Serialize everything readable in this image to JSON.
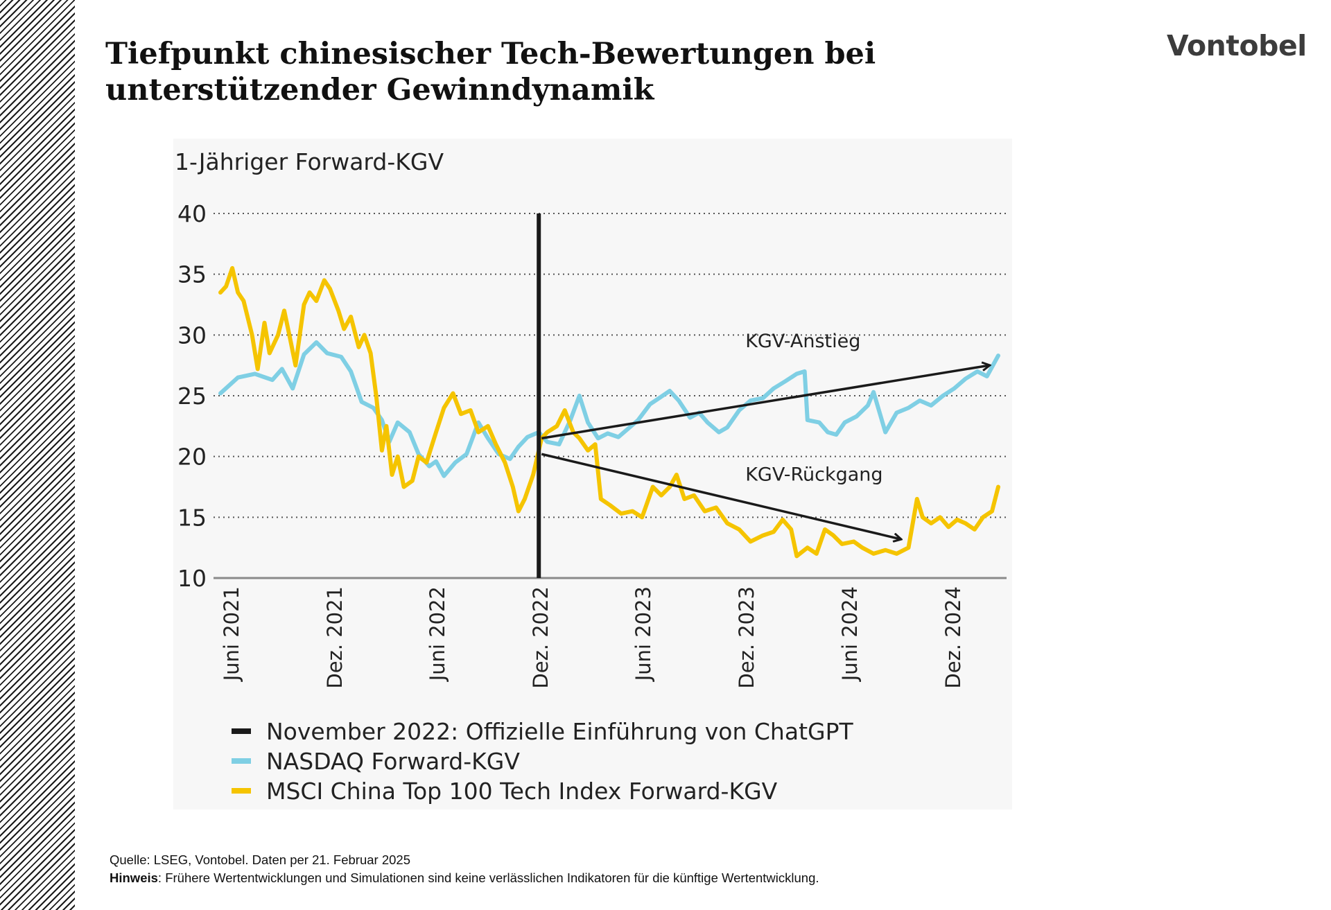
{
  "slide": {
    "title": "Tiefpunkt chinesischer Tech-Bewertungen bei unterstützender Gewinndynamik",
    "logo_text": "Vontobel"
  },
  "footer": {
    "source": "Quelle: LSEG, Vontobel. Daten per 21. Februar 2025",
    "note_label": "Hinweis",
    "note_text": ": Frühere Wertentwicklungen und Simulationen sind keine verlässlichen Indikatoren für die künftige Wertentwicklung."
  },
  "colors": {
    "nasdaq": "#7fcfe4",
    "china": "#f5c400",
    "event": "#1a1a1a",
    "arrow": "#1a1a1a",
    "grid": "#555555"
  },
  "chart_data": {
    "type": "line",
    "ylabel": "1-Jähriger Forward-KGV",
    "ylim": [
      10,
      40
    ],
    "yticks": [
      10,
      15,
      20,
      25,
      30,
      35,
      40
    ],
    "xlim": [
      "2021-05-15",
      "2025-02-21"
    ],
    "xticks": [
      {
        "date": "2021-06-01",
        "label": "Juni 2021"
      },
      {
        "date": "2021-12-01",
        "label": "Dez. 2021"
      },
      {
        "date": "2022-06-01",
        "label": "Juni 2022"
      },
      {
        "date": "2022-12-01",
        "label": "Dez. 2022"
      },
      {
        "date": "2023-06-01",
        "label": "Juni 2023"
      },
      {
        "date": "2023-12-01",
        "label": "Dez. 2023"
      },
      {
        "date": "2024-06-01",
        "label": "Juni 2024"
      },
      {
        "date": "2024-12-01",
        "label": "Dez. 2024"
      }
    ],
    "grid": "horizontal-dotted",
    "event": {
      "date": "2022-11-30",
      "label": "November 2022:  Offizielle Einführung von ChatGPT"
    },
    "series": [
      {
        "name": "NASDAQ Forward-KGV",
        "color_key": "nasdaq",
        "points": [
          [
            "2021-05-15",
            25.2
          ],
          [
            "2021-06-15",
            26.5
          ],
          [
            "2021-07-15",
            26.8
          ],
          [
            "2021-08-15",
            26.3
          ],
          [
            "2021-09-01",
            27.2
          ],
          [
            "2021-09-20",
            25.6
          ],
          [
            "2021-10-10",
            28.4
          ],
          [
            "2021-11-01",
            29.4
          ],
          [
            "2021-11-20",
            28.5
          ],
          [
            "2021-12-15",
            28.2
          ],
          [
            "2022-01-01",
            27.0
          ],
          [
            "2022-01-20",
            24.5
          ],
          [
            "2022-02-10",
            24.0
          ],
          [
            "2022-02-25",
            23.0
          ],
          [
            "2022-03-10",
            21.2
          ],
          [
            "2022-03-25",
            22.8
          ],
          [
            "2022-04-15",
            22.0
          ],
          [
            "2022-05-01",
            20.2
          ],
          [
            "2022-05-20",
            19.2
          ],
          [
            "2022-06-01",
            19.6
          ],
          [
            "2022-06-15",
            18.4
          ],
          [
            "2022-07-05",
            19.5
          ],
          [
            "2022-07-25",
            20.2
          ],
          [
            "2022-08-15",
            22.8
          ],
          [
            "2022-09-01",
            21.5
          ],
          [
            "2022-09-20",
            20.2
          ],
          [
            "2022-10-10",
            19.8
          ],
          [
            "2022-10-25",
            20.8
          ],
          [
            "2022-11-10",
            21.6
          ],
          [
            "2022-11-30",
            22.0
          ],
          [
            "2022-12-15",
            21.2
          ],
          [
            "2023-01-05",
            21.0
          ],
          [
            "2023-01-25",
            23.0
          ],
          [
            "2023-02-10",
            25.0
          ],
          [
            "2023-02-25",
            22.8
          ],
          [
            "2023-03-15",
            21.5
          ],
          [
            "2023-04-01",
            21.9
          ],
          [
            "2023-04-20",
            21.6
          ],
          [
            "2023-05-10",
            22.4
          ],
          [
            "2023-05-25",
            23.0
          ],
          [
            "2023-06-15",
            24.3
          ],
          [
            "2023-07-01",
            24.8
          ],
          [
            "2023-07-20",
            25.4
          ],
          [
            "2023-08-05",
            24.6
          ],
          [
            "2023-08-25",
            23.2
          ],
          [
            "2023-09-10",
            23.6
          ],
          [
            "2023-09-25",
            22.8
          ],
          [
            "2023-10-15",
            22.0
          ],
          [
            "2023-10-30",
            22.4
          ],
          [
            "2023-11-20",
            23.8
          ],
          [
            "2023-12-10",
            24.6
          ],
          [
            "2024-01-01",
            24.8
          ],
          [
            "2024-01-20",
            25.6
          ],
          [
            "2024-02-10",
            26.2
          ],
          [
            "2024-03-01",
            26.8
          ],
          [
            "2024-03-15",
            27.0
          ],
          [
            "2024-03-20",
            23.0
          ],
          [
            "2024-04-10",
            22.8
          ],
          [
            "2024-04-25",
            22.0
          ],
          [
            "2024-05-10",
            21.8
          ],
          [
            "2024-05-25",
            22.8
          ],
          [
            "2024-06-15",
            23.3
          ],
          [
            "2024-07-05",
            24.2
          ],
          [
            "2024-07-15",
            25.3
          ],
          [
            "2024-08-05",
            22.0
          ],
          [
            "2024-08-25",
            23.6
          ],
          [
            "2024-09-15",
            24.0
          ],
          [
            "2024-10-05",
            24.6
          ],
          [
            "2024-10-25",
            24.2
          ],
          [
            "2024-11-15",
            25.0
          ],
          [
            "2024-12-05",
            25.6
          ],
          [
            "2024-12-25",
            26.4
          ],
          [
            "2025-01-15",
            27.0
          ],
          [
            "2025-02-01",
            26.6
          ],
          [
            "2025-02-21",
            28.3
          ]
        ]
      },
      {
        "name": "MSCI China Top 100 Tech Index Forward-KGV",
        "color_key": "china",
        "points": [
          [
            "2021-05-15",
            33.5
          ],
          [
            "2021-05-25",
            34.0
          ],
          [
            "2021-06-05",
            35.5
          ],
          [
            "2021-06-15",
            33.5
          ],
          [
            "2021-06-25",
            32.8
          ],
          [
            "2021-07-10",
            30.0
          ],
          [
            "2021-07-20",
            27.2
          ],
          [
            "2021-08-01",
            31.0
          ],
          [
            "2021-08-10",
            28.5
          ],
          [
            "2021-08-25",
            30.0
          ],
          [
            "2021-09-05",
            32.0
          ],
          [
            "2021-09-15",
            29.8
          ],
          [
            "2021-09-25",
            27.5
          ],
          [
            "2021-10-10",
            32.5
          ],
          [
            "2021-10-20",
            33.5
          ],
          [
            "2021-11-01",
            32.8
          ],
          [
            "2021-11-15",
            34.5
          ],
          [
            "2021-11-25",
            33.8
          ],
          [
            "2021-12-10",
            32.0
          ],
          [
            "2021-12-20",
            30.5
          ],
          [
            "2022-01-01",
            31.5
          ],
          [
            "2022-01-15",
            29.0
          ],
          [
            "2022-01-25",
            30.0
          ],
          [
            "2022-02-05",
            28.5
          ],
          [
            "2022-02-15",
            25.0
          ],
          [
            "2022-02-25",
            20.5
          ],
          [
            "2022-03-05",
            22.5
          ],
          [
            "2022-03-15",
            18.5
          ],
          [
            "2022-03-25",
            20.0
          ],
          [
            "2022-04-05",
            17.5
          ],
          [
            "2022-04-20",
            18.0
          ],
          [
            "2022-05-01",
            20.0
          ],
          [
            "2022-05-15",
            19.5
          ],
          [
            "2022-06-01",
            22.0
          ],
          [
            "2022-06-15",
            24.0
          ],
          [
            "2022-07-01",
            25.2
          ],
          [
            "2022-07-15",
            23.5
          ],
          [
            "2022-08-01",
            23.8
          ],
          [
            "2022-08-15",
            22.0
          ],
          [
            "2022-09-01",
            22.5
          ],
          [
            "2022-09-15",
            21.0
          ],
          [
            "2022-10-01",
            19.5
          ],
          [
            "2022-10-15",
            17.5
          ],
          [
            "2022-10-25",
            15.5
          ],
          [
            "2022-11-05",
            16.5
          ],
          [
            "2022-11-20",
            18.5
          ],
          [
            "2022-12-05",
            21.5
          ],
          [
            "2022-12-15",
            22.0
          ],
          [
            "2023-01-01",
            22.5
          ],
          [
            "2023-01-15",
            23.8
          ],
          [
            "2023-01-30",
            22.0
          ],
          [
            "2023-02-10",
            21.5
          ],
          [
            "2023-02-25",
            20.5
          ],
          [
            "2023-03-10",
            21.0
          ],
          [
            "2023-03-20",
            16.5
          ],
          [
            "2023-04-05",
            16.0
          ],
          [
            "2023-04-25",
            15.3
          ],
          [
            "2023-05-15",
            15.5
          ],
          [
            "2023-06-01",
            15.0
          ],
          [
            "2023-06-20",
            17.5
          ],
          [
            "2023-07-05",
            16.8
          ],
          [
            "2023-07-20",
            17.5
          ],
          [
            "2023-08-01",
            18.5
          ],
          [
            "2023-08-15",
            16.5
          ],
          [
            "2023-09-01",
            16.8
          ],
          [
            "2023-09-20",
            15.5
          ],
          [
            "2023-10-10",
            15.8
          ],
          [
            "2023-10-30",
            14.5
          ],
          [
            "2023-11-20",
            14.0
          ],
          [
            "2023-12-10",
            13.0
          ],
          [
            "2024-01-01",
            13.5
          ],
          [
            "2024-01-20",
            13.8
          ],
          [
            "2024-02-05",
            14.8
          ],
          [
            "2024-02-20",
            14.0
          ],
          [
            "2024-03-01",
            11.8
          ],
          [
            "2024-03-20",
            12.5
          ],
          [
            "2024-04-05",
            12.0
          ],
          [
            "2024-04-20",
            14.0
          ],
          [
            "2024-05-05",
            13.5
          ],
          [
            "2024-05-20",
            12.8
          ],
          [
            "2024-06-10",
            13.0
          ],
          [
            "2024-06-25",
            12.5
          ],
          [
            "2024-07-15",
            12.0
          ],
          [
            "2024-08-05",
            12.3
          ],
          [
            "2024-08-25",
            12.0
          ],
          [
            "2024-09-15",
            12.5
          ],
          [
            "2024-09-30",
            16.5
          ],
          [
            "2024-10-10",
            15.0
          ],
          [
            "2024-10-25",
            14.5
          ],
          [
            "2024-11-10",
            15.0
          ],
          [
            "2024-11-25",
            14.2
          ],
          [
            "2024-12-10",
            14.8
          ],
          [
            "2024-12-25",
            14.5
          ],
          [
            "2025-01-10",
            14.0
          ],
          [
            "2025-01-25",
            15.0
          ],
          [
            "2025-02-10",
            15.5
          ],
          [
            "2025-02-21",
            17.5
          ]
        ]
      }
    ],
    "annotations": [
      {
        "text": "KGV-Anstieg",
        "from": [
          "2022-12-05",
          21.5
        ],
        "to": [
          "2025-02-05",
          27.5
        ],
        "label_at": [
          "2023-12-01",
          29.0
        ]
      },
      {
        "text": "KGV-Rückgang",
        "from": [
          "2022-12-05",
          20.2
        ],
        "to": [
          "2024-09-01",
          13.2
        ],
        "label_at": [
          "2023-12-01",
          18.0
        ]
      }
    ],
    "legend": {
      "position": "bottom",
      "entries": [
        {
          "label": "November 2022:  Offizielle Einführung von ChatGPT",
          "color_key": "event"
        },
        {
          "label": "NASDAQ Forward-KGV",
          "color_key": "nasdaq"
        },
        {
          "label": "MSCI China Top 100 Tech Index Forward-KGV",
          "color_key": "china"
        }
      ]
    }
  }
}
